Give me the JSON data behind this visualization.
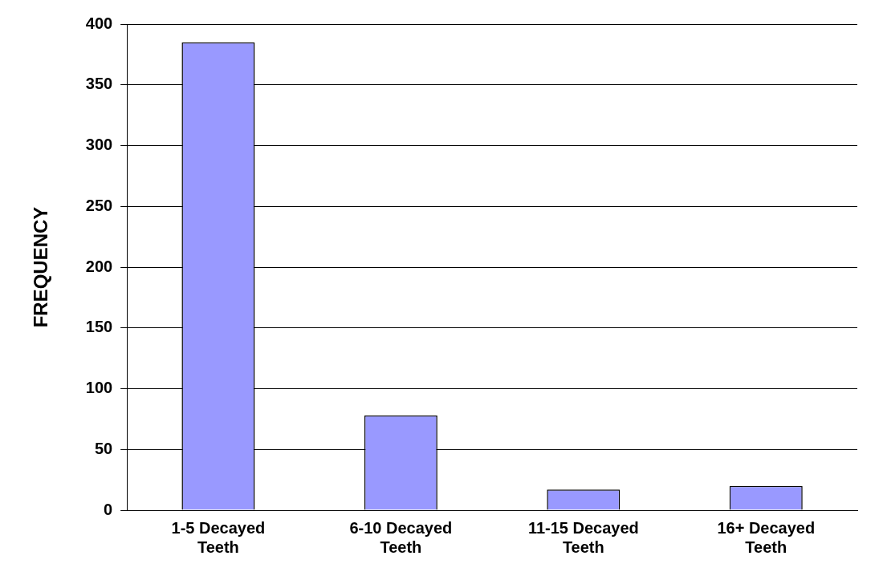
{
  "chart_data": {
    "type": "bar",
    "ylabel": "FREQUENCY",
    "categories": [
      "1-5 Decayed Teeth",
      "6-10 Decayed Teeth",
      "11-15 Decayed Teeth",
      "16+ Decayed Teeth"
    ],
    "values": [
      385,
      78,
      17,
      20
    ],
    "color": "#9999ff",
    "ylim": [
      0,
      400
    ],
    "yticks": [
      0,
      50,
      100,
      150,
      200,
      250,
      300,
      350,
      400
    ],
    "grid": "y",
    "legend": false
  }
}
